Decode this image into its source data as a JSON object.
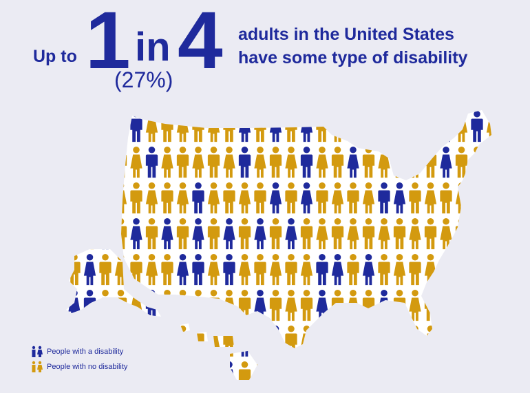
{
  "headline": {
    "prefix": "Up to",
    "numerator": "1",
    "connector": "in",
    "denominator": "4",
    "percent": "(27%)",
    "line1": "adults in the United States",
    "line2": "have some type of disability"
  },
  "legend": {
    "disability_label": "People with a disability",
    "no_disability_label": "People with no disability"
  },
  "colors": {
    "disability": "#1f2a9c",
    "no_disability": "#d39a0f",
    "map_fill": "#ffffff",
    "background": "#ebebf3",
    "text": "#1f2a9c"
  },
  "icons": [
    "person-icon",
    "map-icon"
  ]
}
